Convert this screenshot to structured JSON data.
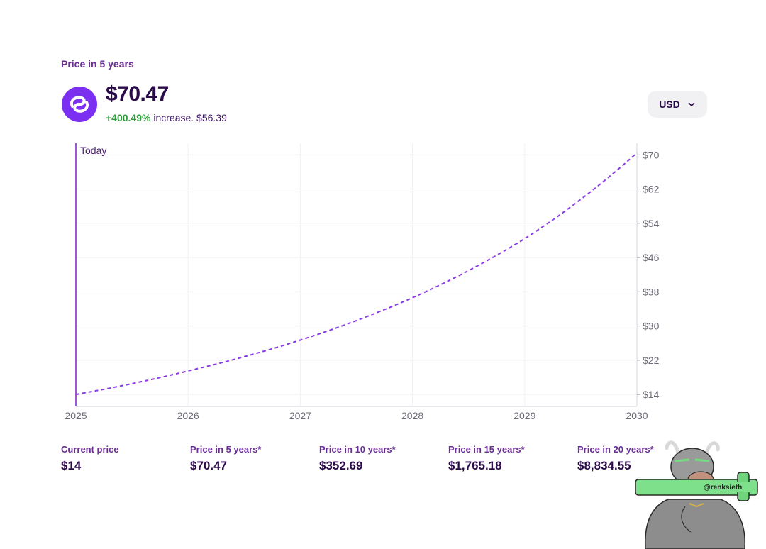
{
  "header": {
    "period_label": "Price in 5 years",
    "price": "$70.47",
    "change_percent": "+400.49%",
    "change_text": "increase. $56.39",
    "currency": "USD"
  },
  "chart_data": {
    "type": "line",
    "x": [
      2025,
      2026,
      2027,
      2028,
      2029,
      2030
    ],
    "series": [
      {
        "values": [
          14,
          19.5,
          26.7,
          36.6,
          50.4,
          70.47
        ]
      }
    ],
    "x_tick_labels": [
      "2025",
      "2026",
      "2027",
      "2028",
      "2029",
      "2030"
    ],
    "y_tick_labels": [
      "$14",
      "$22",
      "$30",
      "$38",
      "$46",
      "$54",
      "$62",
      "$70"
    ],
    "y_ticks": [
      14,
      22,
      30,
      38,
      46,
      54,
      62,
      70
    ],
    "ylim": [
      11.2,
      72.7
    ],
    "xlim": [
      2025,
      2030
    ],
    "annotation": "Today",
    "grid": true,
    "line_style": "dashed",
    "line_color": "#8a3ce6",
    "today_line_color": "#9a5ad6"
  },
  "stats": [
    {
      "label": "Current price",
      "value": "$14"
    },
    {
      "label": "Price in 5 years*",
      "value": "$70.47"
    },
    {
      "label": "Price in 10 years*",
      "value": "$352.69"
    },
    {
      "label": "Price in 15 years*",
      "value": "$1,765.18"
    },
    {
      "label": "Price in 20 years*",
      "value": "$8,834.55"
    }
  ],
  "watermark": {
    "text": "@renksieth"
  },
  "colors": {
    "accent": "#7b2ff0",
    "positive": "#2f9a3a",
    "heading": "#2b0a4a",
    "label": "#6a2e95"
  }
}
